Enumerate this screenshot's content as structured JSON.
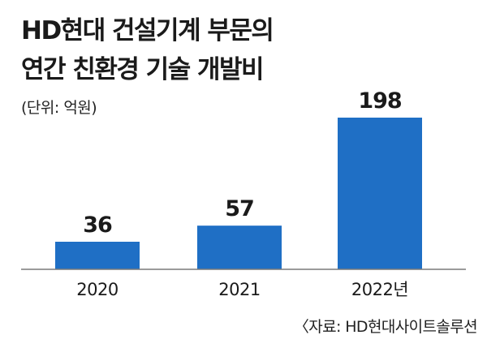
{
  "title_line1": "HD현대 건설기계 부문의",
  "title_line2": "연간 친환경 기술 개발비",
  "unit": "(단위: 억원)",
  "source": "〈자료: HD현대사이트솔루션",
  "colors": {
    "bar": "#1f6fc5",
    "baseline": "#7a7a7a"
  },
  "chart_data": {
    "type": "bar",
    "categories": [
      "2020",
      "2021",
      "2022년"
    ],
    "values": [
      36,
      57,
      198
    ],
    "value_labels": [
      "36",
      "57",
      "198"
    ],
    "title": "HD현대 건설기계 부문의 연간 친환경 기술 개발비",
    "unit": "(단위: 억원)",
    "xlabel": "",
    "ylabel": "",
    "ylim": [
      0,
      198
    ],
    "grid": false,
    "legend": "none"
  }
}
